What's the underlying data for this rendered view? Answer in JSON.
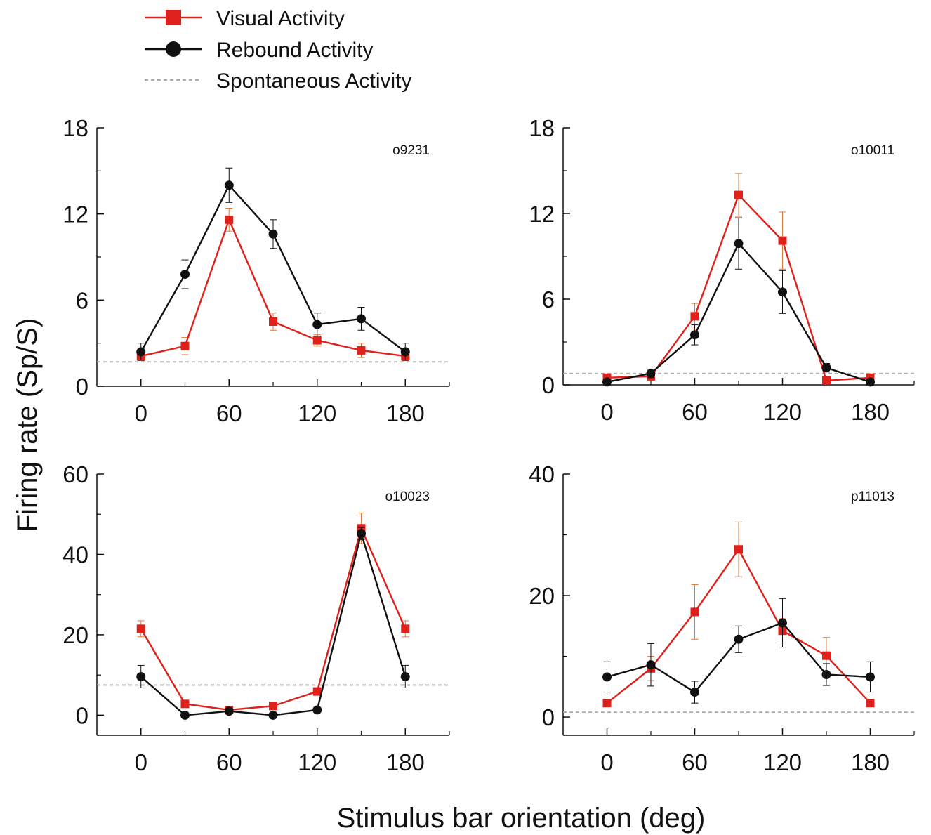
{
  "legend": {
    "visual": "Visual Activity",
    "rebound": "Rebound Activity",
    "spontaneous": "Spontaneous Activity"
  },
  "axes": {
    "ylabel": "Firing rate (Sp/S)",
    "xlabel": "Stimulus bar orientation (deg)"
  },
  "colors": {
    "visual": "#e0201b",
    "visual_error": "#e07a3a",
    "rebound": "#111111",
    "spontaneous": "#aaaaaa"
  },
  "chart_data": [
    {
      "type": "line",
      "panel_label": "o9231",
      "x": [
        0,
        30,
        60,
        90,
        120,
        150,
        180
      ],
      "xticks": [
        0,
        60,
        120,
        180
      ],
      "xlim": [
        -30,
        210
      ],
      "yticks": [
        0,
        6,
        12,
        18
      ],
      "ylim": [
        0,
        18
      ],
      "spontaneous": 1.7,
      "series": [
        {
          "name": "Visual Activity",
          "values": [
            2.1,
            2.8,
            11.6,
            4.5,
            3.2,
            2.5,
            2.1
          ],
          "errors": [
            0.3,
            0.6,
            0.8,
            0.6,
            0.4,
            0.5,
            0.3
          ]
        },
        {
          "name": "Rebound Activity",
          "values": [
            2.4,
            7.8,
            14.0,
            10.6,
            4.3,
            4.7,
            2.4
          ],
          "errors": [
            0.6,
            1.0,
            1.2,
            1.0,
            0.8,
            0.8,
            0.6
          ]
        }
      ]
    },
    {
      "type": "line",
      "panel_label": "o10011",
      "x": [
        0,
        30,
        60,
        90,
        120,
        150,
        180
      ],
      "xticks": [
        0,
        60,
        120,
        180
      ],
      "xlim": [
        -30,
        210
      ],
      "yticks": [
        0,
        6,
        12,
        18
      ],
      "ylim": [
        0,
        18
      ],
      "spontaneous": 0.8,
      "series": [
        {
          "name": "Visual Activity",
          "values": [
            0.5,
            0.6,
            4.8,
            13.3,
            10.1,
            0.3,
            0.5
          ],
          "errors": [
            0.2,
            0.3,
            0.9,
            1.5,
            2.0,
            0.2,
            0.2
          ]
        },
        {
          "name": "Rebound Activity",
          "values": [
            0.2,
            0.8,
            3.5,
            9.9,
            6.5,
            1.2,
            0.2
          ],
          "errors": [
            0.2,
            0.3,
            0.7,
            1.8,
            1.5,
            0.3,
            0.2
          ]
        }
      ]
    },
    {
      "type": "line",
      "panel_label": "o10023",
      "x": [
        0,
        30,
        60,
        90,
        120,
        150,
        180
      ],
      "xticks": [
        0,
        60,
        120,
        180
      ],
      "xlim": [
        -30,
        210
      ],
      "yticks": [
        0,
        20,
        40,
        60
      ],
      "ylim": [
        -5,
        60
      ],
      "spontaneous": 7.5,
      "series": [
        {
          "name": "Visual Activity",
          "values": [
            21.5,
            2.8,
            1.3,
            2.3,
            5.9,
            46.5,
            21.5
          ],
          "errors": [
            2.0,
            0.5,
            0.4,
            0.5,
            0.8,
            3.8,
            2.0
          ]
        },
        {
          "name": "Rebound Activity",
          "values": [
            9.6,
            0.0,
            1.0,
            0.0,
            1.3,
            45.2,
            9.6
          ],
          "errors": [
            2.8,
            0.3,
            0.4,
            0.3,
            0.5,
            1.5,
            2.8
          ]
        }
      ]
    },
    {
      "type": "line",
      "panel_label": "p11013",
      "x": [
        0,
        30,
        60,
        90,
        120,
        150,
        180
      ],
      "xticks": [
        0,
        60,
        120,
        180
      ],
      "xlim": [
        -30,
        210
      ],
      "yticks": [
        0,
        20,
        40
      ],
      "ylim": [
        -3,
        40
      ],
      "spontaneous": 0.8,
      "series": [
        {
          "name": "Visual Activity",
          "values": [
            2.3,
            8.0,
            17.3,
            27.6,
            14.2,
            10.1,
            2.3
          ],
          "errors": [
            0.5,
            2.0,
            4.5,
            4.5,
            2.0,
            3.0,
            0.5
          ]
        },
        {
          "name": "Rebound Activity",
          "values": [
            6.6,
            8.6,
            4.1,
            12.8,
            15.5,
            7.0,
            6.6
          ],
          "errors": [
            2.5,
            3.5,
            1.8,
            2.2,
            4.0,
            1.8,
            2.5
          ]
        }
      ]
    }
  ]
}
